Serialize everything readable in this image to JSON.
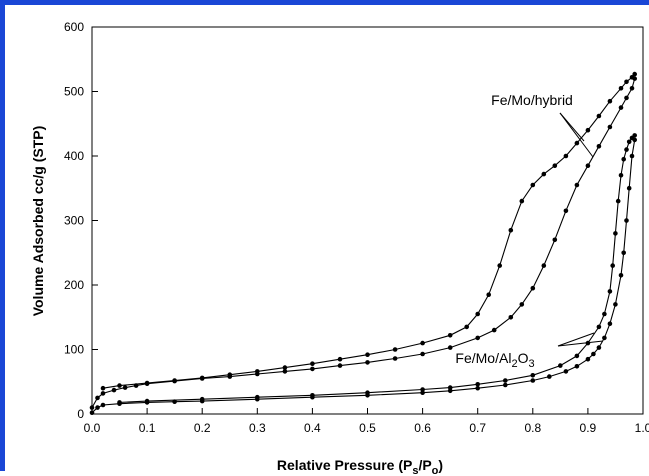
{
  "chart_data": {
    "type": "line",
    "title": "",
    "xlabel": "Relative Pressure (Ps/Po)",
    "xlabel_main": "Relative Pressure (P",
    "xlabel_sub1": "s",
    "xlabel_mid": "/P",
    "xlabel_sub2": "o",
    "xlabel_end": ")",
    "ylabel": "Volume Adsorbed cc/g (STP)",
    "xlim": [
      0,
      1.0
    ],
    "ylim": [
      0,
      600
    ],
    "x_ticks": [
      "0.0",
      "0.1",
      "0.2",
      "0.3",
      "0.4",
      "0.5",
      "0.6",
      "0.7",
      "0.8",
      "0.9",
      "1.0"
    ],
    "y_ticks": [
      "0",
      "100",
      "200",
      "300",
      "400",
      "500",
      "600"
    ],
    "grid": false,
    "annotations": [
      {
        "text": "Fe/Mo/hybrid",
        "target_series": "Fe/Mo/hybrid",
        "point_x": 0.895,
        "point_y": 415
      },
      {
        "text": "Fe/Mo/Al2O3",
        "main": "Fe/Mo/Al",
        "sub": "2",
        "tail": "O",
        "sub2": "3",
        "target_series": "Fe/Mo/Al2O3",
        "point_x": 0.92,
        "point_y": 125
      }
    ],
    "series": [
      {
        "label": "Fe/Mo/hybrid adsorption",
        "group": "Fe/Mo/hybrid",
        "x": [
          0.0,
          0.01,
          0.02,
          0.04,
          0.06,
          0.08,
          0.1,
          0.15,
          0.2,
          0.25,
          0.3,
          0.35,
          0.4,
          0.45,
          0.5,
          0.55,
          0.6,
          0.65,
          0.7,
          0.73,
          0.76,
          0.78,
          0.8,
          0.82,
          0.84,
          0.86,
          0.88,
          0.9,
          0.92,
          0.94,
          0.96,
          0.97,
          0.98,
          0.985
        ],
        "y": [
          10,
          25,
          32,
          37,
          41,
          44,
          47,
          51,
          55,
          58,
          62,
          66,
          70,
          75,
          80,
          86,
          93,
          103,
          118,
          130,
          150,
          170,
          195,
          230,
          270,
          315,
          355,
          385,
          415,
          445,
          475,
          490,
          505,
          520
        ]
      },
      {
        "label": "Fe/Mo/hybrid desorption",
        "group": "Fe/Mo/hybrid",
        "x": [
          0.985,
          0.98,
          0.97,
          0.96,
          0.94,
          0.92,
          0.9,
          0.88,
          0.86,
          0.84,
          0.82,
          0.8,
          0.78,
          0.76,
          0.74,
          0.72,
          0.7,
          0.68,
          0.65,
          0.6,
          0.55,
          0.5,
          0.45,
          0.4,
          0.35,
          0.3,
          0.25,
          0.2,
          0.15,
          0.1,
          0.05,
          0.02
        ],
        "y": [
          527,
          522,
          515,
          505,
          485,
          462,
          440,
          420,
          400,
          385,
          372,
          355,
          330,
          285,
          230,
          185,
          155,
          135,
          122,
          110,
          100,
          92,
          85,
          78,
          72,
          66,
          61,
          56,
          52,
          48,
          44,
          40
        ]
      },
      {
        "label": "Fe/Mo/Al2O3 adsorption",
        "group": "Fe/Mo/Al2O3",
        "x": [
          0.0,
          0.01,
          0.02,
          0.05,
          0.1,
          0.15,
          0.2,
          0.3,
          0.4,
          0.5,
          0.6,
          0.65,
          0.7,
          0.75,
          0.8,
          0.83,
          0.86,
          0.88,
          0.9,
          0.91,
          0.92,
          0.93,
          0.94,
          0.95,
          0.96,
          0.965,
          0.97,
          0.975,
          0.98,
          0.985
        ],
        "y": [
          2,
          10,
          14,
          16,
          18,
          19,
          20,
          23,
          26,
          29,
          33,
          36,
          40,
          45,
          52,
          58,
          66,
          74,
          85,
          93,
          103,
          118,
          140,
          170,
          215,
          250,
          300,
          350,
          400,
          425
        ]
      },
      {
        "label": "Fe/Mo/Al2O3 desorption",
        "group": "Fe/Mo/Al2O3",
        "x": [
          0.985,
          0.98,
          0.975,
          0.97,
          0.965,
          0.96,
          0.955,
          0.95,
          0.945,
          0.94,
          0.93,
          0.92,
          0.9,
          0.88,
          0.85,
          0.8,
          0.75,
          0.7,
          0.65,
          0.6,
          0.5,
          0.4,
          0.3,
          0.2,
          0.1,
          0.05
        ],
        "y": [
          432,
          428,
          422,
          410,
          395,
          370,
          330,
          280,
          230,
          190,
          155,
          135,
          110,
          90,
          75,
          60,
          52,
          46,
          41,
          38,
          33,
          29,
          26,
          23,
          20,
          18
        ]
      }
    ]
  }
}
